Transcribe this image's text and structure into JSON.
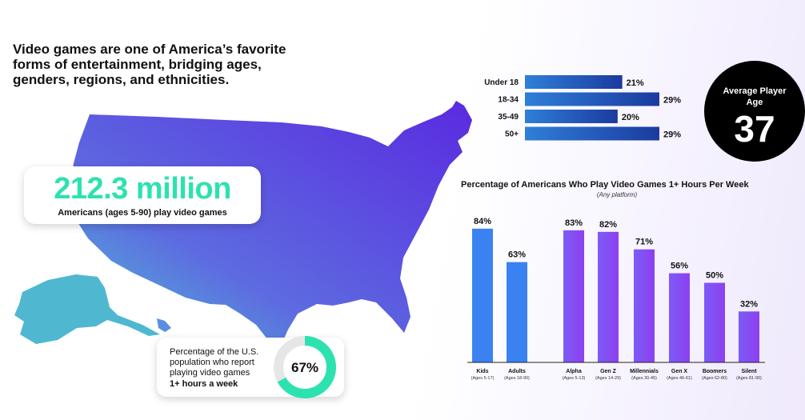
{
  "headline": "Video games are one of America’s favorite forms of entertainment, bridging ages, genders, regions, and ethnicities.",
  "players_stat": {
    "value": "212.3 million",
    "caption": "Americans (ages 5-90) play video games"
  },
  "weekly_play_stat": {
    "line1": "Percentage of the U.S.",
    "line2": "population who report",
    "line3": "playing video games",
    "line4": "1+ hours a week",
    "value_label": "67%",
    "value": 67,
    "ring_color": "#2ce2b0",
    "track_color": "#e6e6e6"
  },
  "average_player_age": {
    "title_line1": "Average Player",
    "title_line2": "Age",
    "value": "37"
  },
  "colors": {
    "map_light": "#4fc6d6",
    "map_dark": "#5a2ae0",
    "age_bar_light": "#2f7fd8",
    "age_bar_dark": "#1b3a9f",
    "kids_adults_bar": "#3a82f2",
    "generation_bar_start": "#7b5cf6",
    "generation_bar_end": "#8e3ff0"
  },
  "chart_data": [
    {
      "type": "bar",
      "orientation": "horizontal",
      "categories": [
        "Under 18",
        "18-34",
        "35-49",
        "50+"
      ],
      "values": [
        21,
        29,
        20,
        29
      ],
      "value_labels": [
        "21%",
        "29%",
        "20%",
        "29%"
      ],
      "xlim": [
        0,
        29
      ],
      "grid": false,
      "legend": "none"
    },
    {
      "type": "bar",
      "title": "Percentage of Americans Who Play Video Games 1+ Hours Per Week",
      "subtitle": "(Any platform)",
      "categories": [
        "Kids",
        "Adults",
        "Alpha",
        "Gen Z",
        "Millennials",
        "Gen X",
        "Boomers",
        "Silent"
      ],
      "category_subtitles": [
        "(Ages 5-17)",
        "(Ages 18-90)",
        "(Ages 5-13)",
        "(Ages 14-29)",
        "(Ages 30-45)",
        "(Ages 46-61)",
        "(Ages 62-80)",
        "(Ages 81-90)"
      ],
      "values": [
        84,
        63,
        83,
        82,
        71,
        56,
        50,
        32
      ],
      "value_labels": [
        "84%",
        "63%",
        "83%",
        "82%",
        "71%",
        "56%",
        "50%",
        "32%"
      ],
      "ylim": [
        0,
        100
      ],
      "grid": false,
      "legend": "none"
    }
  ]
}
